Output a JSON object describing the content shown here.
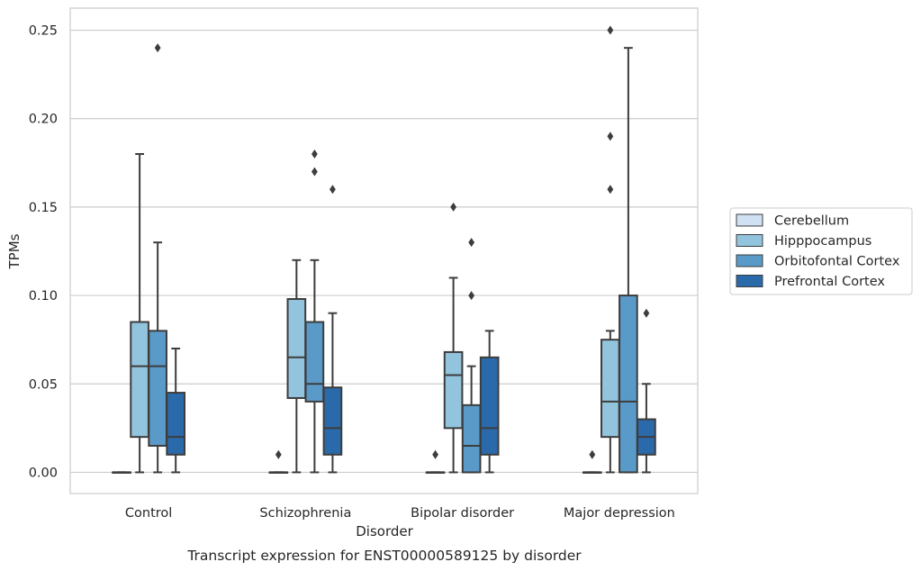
{
  "caption": "Transcript expression for ENST00000589125 by disorder",
  "chart_data": {
    "type": "box",
    "xlabel": "Disorder",
    "ylabel": "TPMs",
    "ylim": [
      -0.012,
      0.2625
    ],
    "yticks": [
      0.0,
      0.05,
      0.1,
      0.15,
      0.2,
      0.25
    ],
    "ytick_labels": [
      "0.00",
      "0.05",
      "0.10",
      "0.15",
      "0.20",
      "0.25"
    ],
    "grid": "horizontal",
    "legend_position": "right",
    "categories": [
      "Control",
      "Schizophrenia",
      "Bipolar disorder",
      "Major depression"
    ],
    "series": [
      {
        "name": "Cerebellum",
        "color": "#cfe1f2",
        "boxes": [
          {
            "whislo": 0,
            "q1": 0,
            "med": 0,
            "q3": 0,
            "whishi": 0,
            "fliers": []
          },
          {
            "whislo": 0,
            "q1": 0,
            "med": 0,
            "q3": 0,
            "whishi": 0,
            "fliers": [
              0.01
            ]
          },
          {
            "whislo": 0,
            "q1": 0,
            "med": 0,
            "q3": 0,
            "whishi": 0,
            "fliers": [
              0.01
            ]
          },
          {
            "whislo": 0,
            "q1": 0,
            "med": 0,
            "q3": 0,
            "whishi": 0,
            "fliers": [
              0.01
            ]
          }
        ]
      },
      {
        "name": "Hipppocampus",
        "color": "#93c4de",
        "boxes": [
          {
            "whislo": 0,
            "q1": 0.02,
            "med": 0.06,
            "q3": 0.085,
            "whishi": 0.18,
            "fliers": []
          },
          {
            "whislo": 0,
            "q1": 0.042,
            "med": 0.065,
            "q3": 0.098,
            "whishi": 0.12,
            "fliers": []
          },
          {
            "whislo": 0,
            "q1": 0.025,
            "med": 0.055,
            "q3": 0.068,
            "whishi": 0.11,
            "fliers": [
              0.15
            ]
          },
          {
            "whislo": 0,
            "q1": 0.02,
            "med": 0.04,
            "q3": 0.075,
            "whishi": 0.08,
            "fliers": [
              0.16,
              0.19,
              0.25
            ]
          }
        ]
      },
      {
        "name": "Orbitofontal Cortex",
        "color": "#5a9ac9",
        "boxes": [
          {
            "whislo": 0,
            "q1": 0.015,
            "med": 0.06,
            "q3": 0.08,
            "whishi": 0.13,
            "fliers": [
              0.24
            ]
          },
          {
            "whislo": 0,
            "q1": 0.04,
            "med": 0.05,
            "q3": 0.085,
            "whishi": 0.12,
            "fliers": [
              0.17,
              0.18
            ]
          },
          {
            "whislo": 0,
            "q1": 0,
            "med": 0.015,
            "q3": 0.038,
            "whishi": 0.06,
            "fliers": [
              0.1,
              0.13
            ]
          },
          {
            "whislo": 0,
            "q1": 0,
            "med": 0.04,
            "q3": 0.1,
            "whishi": 0.24,
            "fliers": []
          }
        ]
      },
      {
        "name": "Prefrontal Cortex",
        "color": "#2b6aaa",
        "boxes": [
          {
            "whislo": 0,
            "q1": 0.01,
            "med": 0.02,
            "q3": 0.045,
            "whishi": 0.07,
            "fliers": []
          },
          {
            "whislo": 0,
            "q1": 0.01,
            "med": 0.025,
            "q3": 0.048,
            "whishi": 0.09,
            "fliers": [
              0.16
            ]
          },
          {
            "whislo": 0,
            "q1": 0.01,
            "med": 0.025,
            "q3": 0.065,
            "whishi": 0.08,
            "fliers": []
          },
          {
            "whislo": 0,
            "q1": 0.01,
            "med": 0.02,
            "q3": 0.03,
            "whishi": 0.05,
            "fliers": [
              0.09
            ]
          }
        ]
      }
    ]
  }
}
